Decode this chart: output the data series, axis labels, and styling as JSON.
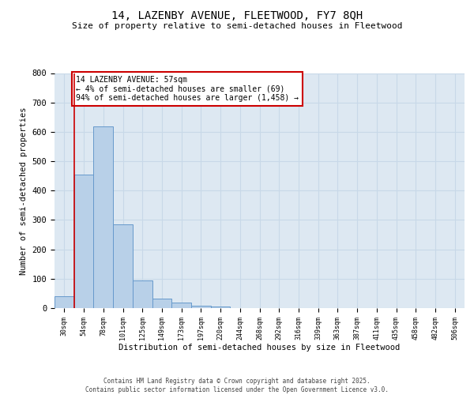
{
  "title1": "14, LAZENBY AVENUE, FLEETWOOD, FY7 8QH",
  "title2": "Size of property relative to semi-detached houses in Fleetwood",
  "xlabel": "Distribution of semi-detached houses by size in Fleetwood",
  "ylabel": "Number of semi-detached properties",
  "categories": [
    "30sqm",
    "54sqm",
    "78sqm",
    "101sqm",
    "125sqm",
    "149sqm",
    "173sqm",
    "197sqm",
    "220sqm",
    "244sqm",
    "268sqm",
    "292sqm",
    "316sqm",
    "339sqm",
    "363sqm",
    "387sqm",
    "411sqm",
    "435sqm",
    "458sqm",
    "482sqm",
    "506sqm"
  ],
  "values": [
    40,
    455,
    618,
    285,
    93,
    33,
    18,
    8,
    5,
    0,
    0,
    0,
    0,
    0,
    0,
    0,
    0,
    0,
    0,
    0,
    0
  ],
  "bar_color": "#b8d0e8",
  "bar_edge_color": "#6699cc",
  "grid_color": "#c8d8e8",
  "bg_color": "#dde8f2",
  "vline_color": "#cc0000",
  "annotation_text": "14 LAZENBY AVENUE: 57sqm\n← 4% of semi-detached houses are smaller (69)\n94% of semi-detached houses are larger (1,458) →",
  "annotation_box_color": "white",
  "annotation_edge_color": "#cc0000",
  "footer": "Contains HM Land Registry data © Crown copyright and database right 2025.\nContains public sector information licensed under the Open Government Licence v3.0.",
  "ylim": [
    0,
    800
  ],
  "yticks": [
    0,
    100,
    200,
    300,
    400,
    500,
    600,
    700,
    800
  ]
}
